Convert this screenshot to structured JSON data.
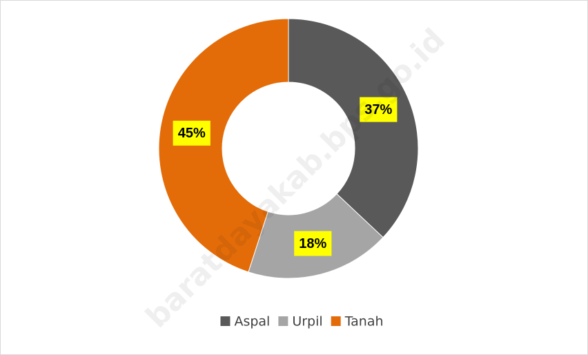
{
  "chart_data": {
    "type": "donut",
    "categories": [
      "Aspal",
      "Urpil",
      "Tanah"
    ],
    "values": [
      37,
      18,
      45
    ],
    "value_labels": [
      "37%",
      "18%",
      "45%"
    ],
    "colors": [
      "#595959",
      "#a5a5a5",
      "#e36c09"
    ],
    "legend": "bottom",
    "watermark": "baratdayakab.bps.go.id"
  }
}
